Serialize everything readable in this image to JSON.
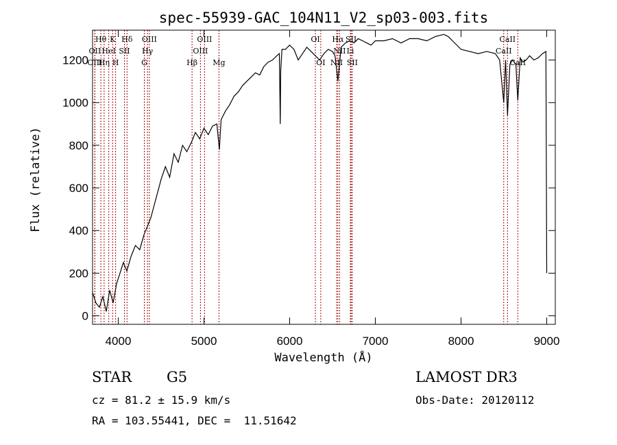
{
  "chart_data": {
    "type": "line",
    "title": "spec-55939-GAC_104N11_V2_sp03-003.fits",
    "xlabel": "Wavelength (Å)",
    "ylabel": "Flux (relative)",
    "xlim": [
      3700,
      9100
    ],
    "ylim": [
      -40,
      1340
    ],
    "xticks": [
      4000,
      5000,
      6000,
      7000,
      8000,
      9000
    ],
    "yticks": [
      0,
      200,
      400,
      600,
      800,
      1000,
      1200
    ],
    "series": [
      {
        "name": "flux",
        "x": [
          3700,
          3740,
          3780,
          3820,
          3860,
          3900,
          3940,
          3980,
          4020,
          4060,
          4100,
          4150,
          4200,
          4250,
          4300,
          4340,
          4380,
          4420,
          4460,
          4500,
          4550,
          4600,
          4650,
          4700,
          4750,
          4800,
          4860,
          4900,
          4950,
          5000,
          5050,
          5100,
          5150,
          5180,
          5200,
          5250,
          5300,
          5350,
          5400,
          5450,
          5500,
          5550,
          5600,
          5650,
          5700,
          5750,
          5800,
          5850,
          5880,
          5890,
          5896,
          5910,
          5950,
          6000,
          6050,
          6100,
          6150,
          6200,
          6250,
          6300,
          6350,
          6400,
          6450,
          6500,
          6530,
          6563,
          6600,
          6650,
          6700,
          6750,
          6800,
          6850,
          6900,
          6950,
          7000,
          7100,
          7200,
          7300,
          7400,
          7500,
          7600,
          7700,
          7800,
          7850,
          7900,
          8000,
          8100,
          8200,
          8300,
          8400,
          8450,
          8498,
          8520,
          8542,
          8570,
          8600,
          8640,
          8662,
          8690,
          8720,
          8760,
          8800,
          8850,
          8900,
          8950,
          8990,
          9000
        ],
        "values": [
          110,
          60,
          40,
          90,
          20,
          120,
          60,
          150,
          200,
          250,
          210,
          280,
          330,
          310,
          380,
          420,
          460,
          520,
          580,
          640,
          700,
          650,
          760,
          720,
          800,
          770,
          820,
          860,
          830,
          880,
          850,
          890,
          900,
          780,
          920,
          960,
          990,
          1030,
          1050,
          1080,
          1100,
          1120,
          1140,
          1130,
          1170,
          1190,
          1200,
          1220,
          1230,
          900,
          1150,
          1250,
          1250,
          1270,
          1250,
          1200,
          1230,
          1260,
          1240,
          1220,
          1200,
          1230,
          1250,
          1240,
          1220,
          1100,
          1260,
          1280,
          1290,
          1280,
          1300,
          1290,
          1280,
          1270,
          1290,
          1290,
          1300,
          1280,
          1300,
          1300,
          1290,
          1310,
          1320,
          1310,
          1290,
          1250,
          1240,
          1230,
          1240,
          1230,
          1200,
          1000,
          1200,
          940,
          1180,
          1200,
          1180,
          1010,
          1210,
          1190,
          1200,
          1220,
          1200,
          1210,
          1230,
          1240,
          200
        ]
      }
    ],
    "spectral_lines": [
      {
        "label": "Hθ",
        "x": 3797,
        "row": 1
      },
      {
        "label": "OII",
        "x": 3727,
        "row": 2
      },
      {
        "label": "OIII",
        "x": 3727,
        "row": 3
      },
      {
        "label": "Hη",
        "x": 3835,
        "row": 3
      },
      {
        "label": "K",
        "x": 3934,
        "row": 1
      },
      {
        "label": "HeI",
        "x": 3889,
        "row": 2
      },
      {
        "label": "H",
        "x": 3969,
        "row": 3
      },
      {
        "label": "SII",
        "x": 4072,
        "row": 2
      },
      {
        "label": "Hδ",
        "x": 4102,
        "row": 1
      },
      {
        "label": "OIII",
        "x": 4363,
        "row": 1
      },
      {
        "label": "Hγ",
        "x": 4341,
        "row": 2
      },
      {
        "label": "G",
        "x": 4304,
        "row": 3
      },
      {
        "label": "Hβ",
        "x": 4861,
        "row": 3
      },
      {
        "label": "OIII",
        "x": 4959,
        "row": 2
      },
      {
        "label": "OIII",
        "x": 5007,
        "row": 1
      },
      {
        "label": "Mg",
        "x": 5175,
        "row": 3
      },
      {
        "label": "OI",
        "x": 6300,
        "row": 1
      },
      {
        "label": "OI",
        "x": 6363,
        "row": 3
      },
      {
        "label": "Hα",
        "x": 6563,
        "row": 1
      },
      {
        "label": "NII",
        "x": 6548,
        "row": 3
      },
      {
        "label": "NII",
        "x": 6583,
        "row": 2
      },
      {
        "label": "SII",
        "x": 6717,
        "row": 1
      },
      {
        "label": "SII",
        "x": 6731,
        "row": 3
      },
      {
        "label": "Li",
        "x": 6708,
        "row": 2
      },
      {
        "label": "CaII",
        "x": 8542,
        "row": 1
      },
      {
        "label": "CaII",
        "x": 8498,
        "row": 2
      },
      {
        "label": "CaII",
        "x": 8662,
        "row": 3
      }
    ],
    "line_color": "#000000",
    "marker_color": "#a00000"
  },
  "info": {
    "class": "STAR",
    "subclass": "G5",
    "survey": "LAMOST DR3",
    "cz": "cz = 81.2 ± 15.9 km/s",
    "obs_date": "Obs-Date: 20120112",
    "radec": "RA = 103.55441, DEC =  11.51642"
  }
}
